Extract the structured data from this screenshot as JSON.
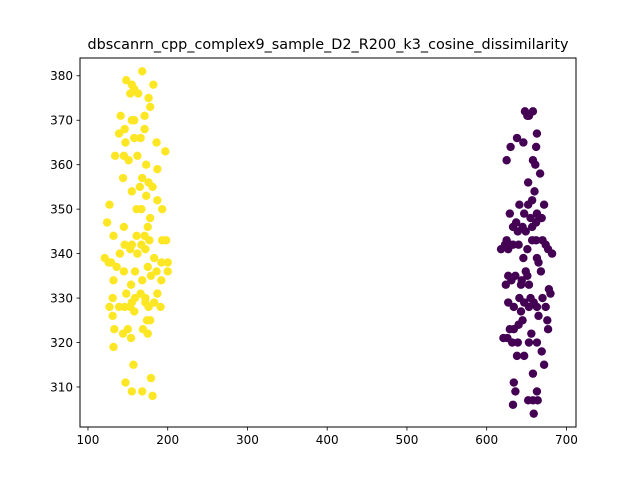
{
  "chart_data": {
    "type": "scatter",
    "title": "dbscanrn_cpp_complex9_sample_D2_R200_k3_cosine_dissimilarity",
    "xlabel": "",
    "ylabel": "",
    "xlim": [
      90,
      712
    ],
    "ylim": [
      301,
      384
    ],
    "xticks": [
      100,
      200,
      300,
      400,
      500,
      600,
      700
    ],
    "yticks": [
      310,
      320,
      330,
      340,
      350,
      360,
      370,
      380
    ],
    "grid": false,
    "legend": "none",
    "colors": {
      "cluster_0": "#440154",
      "cluster_1": "#fde725"
    },
    "series": [
      {
        "color": "cluster_0",
        "points": [
          [
            658,
            372
          ],
          [
            651,
            371
          ],
          [
            648,
            372
          ],
          [
            653,
            371
          ],
          [
            663,
            367
          ],
          [
            630,
            364
          ],
          [
            638,
            366
          ],
          [
            646,
            365
          ],
          [
            662,
            364
          ],
          [
            625,
            361
          ],
          [
            658,
            361
          ],
          [
            661,
            360
          ],
          [
            667,
            358
          ],
          [
            652,
            356
          ],
          [
            660,
            354
          ],
          [
            641,
            351
          ],
          [
            652,
            351
          ],
          [
            657,
            352
          ],
          [
            663,
            349
          ],
          [
            672,
            351
          ],
          [
            629,
            349
          ],
          [
            647,
            349
          ],
          [
            655,
            348
          ],
          [
            666,
            348
          ],
          [
            637,
            347
          ],
          [
            662,
            347
          ],
          [
            669,
            348
          ],
          [
            633,
            346
          ],
          [
            645,
            346
          ],
          [
            657,
            346
          ],
          [
            639,
            345
          ],
          [
            649,
            345
          ],
          [
            623,
            342
          ],
          [
            625,
            343
          ],
          [
            629,
            342
          ],
          [
            633,
            342
          ],
          [
            640,
            342
          ],
          [
            657,
            343
          ],
          [
            662,
            343
          ],
          [
            670,
            343
          ],
          [
            674,
            342
          ],
          [
            618,
            341
          ],
          [
            627,
            341
          ],
          [
            651,
            341
          ],
          [
            677,
            341
          ],
          [
            646,
            339
          ],
          [
            663,
            339
          ],
          [
            682,
            340
          ],
          [
            665,
            338
          ],
          [
            649,
            336
          ],
          [
            668,
            336
          ],
          [
            627,
            335
          ],
          [
            636,
            335
          ],
          [
            651,
            335
          ],
          [
            644,
            334
          ],
          [
            624,
            333
          ],
          [
            643,
            333
          ],
          [
            653,
            333
          ],
          [
            631,
            334
          ],
          [
            678,
            332
          ],
          [
            641,
            330
          ],
          [
            655,
            330
          ],
          [
            670,
            330
          ],
          [
            680,
            331
          ],
          [
            627,
            329
          ],
          [
            647,
            329
          ],
          [
            659,
            329
          ],
          [
            663,
            328
          ],
          [
            674,
            328
          ],
          [
            634,
            328
          ],
          [
            643,
            327
          ],
          [
            653,
            328
          ],
          [
            665,
            326
          ],
          [
            645,
            325
          ],
          [
            676,
            325
          ],
          [
            640,
            324
          ],
          [
            629,
            323
          ],
          [
            634,
            323
          ],
          [
            656,
            322
          ],
          [
            677,
            323
          ],
          [
            621,
            321
          ],
          [
            626,
            321
          ],
          [
            632,
            320
          ],
          [
            639,
            320
          ],
          [
            653,
            320
          ],
          [
            663,
            320
          ],
          [
            669,
            318
          ],
          [
            638,
            317
          ],
          [
            647,
            317
          ],
          [
            672,
            315
          ],
          [
            658,
            313
          ],
          [
            634,
            311
          ],
          [
            663,
            309
          ],
          [
            636,
            309
          ],
          [
            652,
            307
          ],
          [
            658,
            307
          ],
          [
            664,
            307
          ],
          [
            633,
            306
          ],
          [
            659,
            304
          ]
        ]
      },
      {
        "color": "cluster_1",
        "points": [
          [
            168,
            381
          ],
          [
            148,
            379
          ],
          [
            158,
            377
          ],
          [
            155,
            378
          ],
          [
            182,
            378
          ],
          [
            176,
            375
          ],
          [
            153,
            376
          ],
          [
            163,
            376
          ],
          [
            178,
            373
          ],
          [
            171,
            371
          ],
          [
            158,
            370
          ],
          [
            141,
            371
          ],
          [
            155,
            370
          ],
          [
            146,
            368
          ],
          [
            171,
            368
          ],
          [
            139,
            367
          ],
          [
            147,
            365
          ],
          [
            158,
            366
          ],
          [
            186,
            365
          ],
          [
            166,
            366
          ],
          [
            145,
            362
          ],
          [
            151,
            361
          ],
          [
            162,
            362
          ],
          [
            197,
            363
          ],
          [
            134,
            362
          ],
          [
            173,
            360
          ],
          [
            187,
            359
          ],
          [
            144,
            357
          ],
          [
            168,
            357
          ],
          [
            176,
            356
          ],
          [
            181,
            355
          ],
          [
            165,
            355
          ],
          [
            155,
            354
          ],
          [
            173,
            353
          ],
          [
            187,
            352
          ],
          [
            127,
            351
          ],
          [
            167,
            350
          ],
          [
            161,
            350
          ],
          [
            193,
            350
          ],
          [
            178,
            348
          ],
          [
            145,
            346
          ],
          [
            124,
            347
          ],
          [
            175,
            346
          ],
          [
            161,
            344
          ],
          [
            171,
            344
          ],
          [
            132,
            344
          ],
          [
            177,
            343
          ],
          [
            193,
            343
          ],
          [
            198,
            343
          ],
          [
            155,
            342
          ],
          [
            146,
            342
          ],
          [
            167,
            342
          ],
          [
            162,
            340
          ],
          [
            140,
            340
          ],
          [
            153,
            341
          ],
          [
            172,
            341
          ],
          [
            183,
            339
          ],
          [
            192,
            338
          ],
          [
            200,
            338
          ],
          [
            175,
            337
          ],
          [
            126,
            338
          ],
          [
            121,
            339
          ],
          [
            129,
            338
          ],
          [
            136,
            337
          ],
          [
            159,
            336
          ],
          [
            186,
            336
          ],
          [
            145,
            336
          ],
          [
            168,
            334
          ],
          [
            179,
            335
          ],
          [
            200,
            336
          ],
          [
            132,
            334
          ],
          [
            154,
            333
          ],
          [
            192,
            334
          ],
          [
            131,
            330
          ],
          [
            148,
            331
          ],
          [
            166,
            331
          ],
          [
            172,
            330
          ],
          [
            159,
            330
          ],
          [
            187,
            331
          ],
          [
            155,
            329
          ],
          [
            183,
            329
          ],
          [
            146,
            328
          ],
          [
            172,
            329
          ],
          [
            139,
            328
          ],
          [
            153,
            328
          ],
          [
            176,
            328
          ],
          [
            127,
            328
          ],
          [
            191,
            328
          ],
          [
            158,
            327
          ],
          [
            131,
            326
          ],
          [
            174,
            325
          ],
          [
            178,
            325
          ],
          [
            150,
            323
          ],
          [
            133,
            323
          ],
          [
            169,
            323
          ],
          [
            144,
            322
          ],
          [
            175,
            322
          ],
          [
            154,
            321
          ],
          [
            132,
            319
          ],
          [
            157,
            315
          ],
          [
            147,
            311
          ],
          [
            155,
            309
          ],
          [
            168,
            309
          ],
          [
            179,
            312
          ],
          [
            181,
            308
          ]
        ]
      }
    ]
  }
}
